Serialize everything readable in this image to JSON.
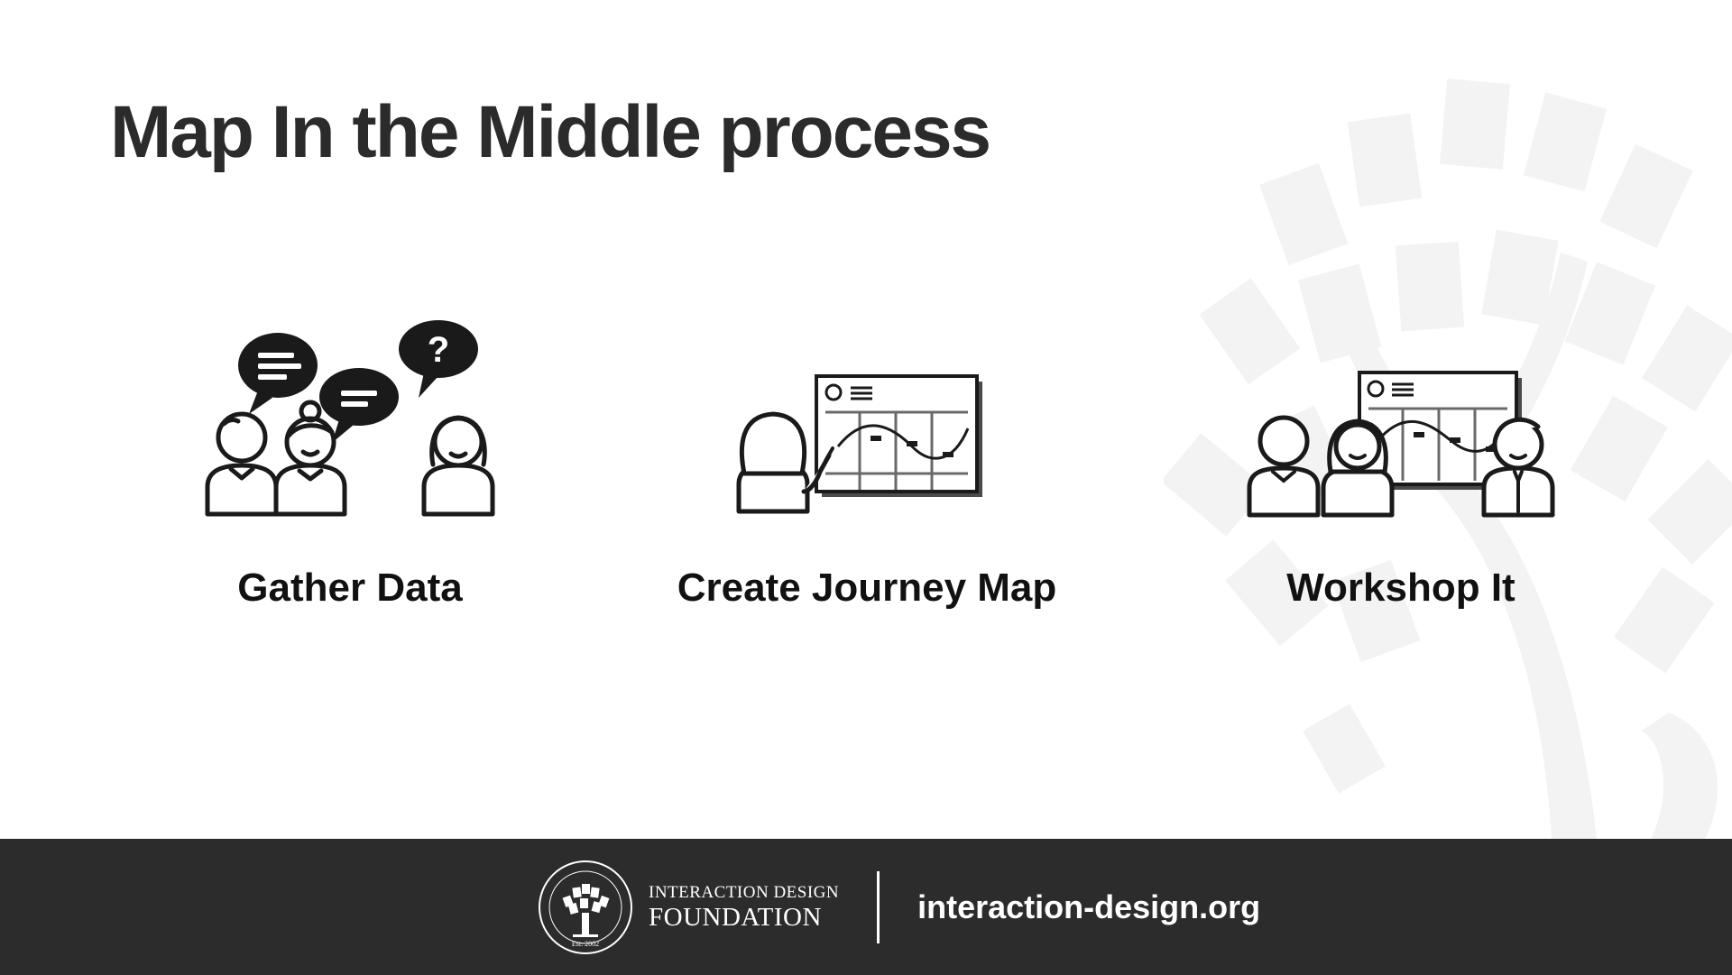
{
  "slide": {
    "title": "Map In the Middle process"
  },
  "steps": [
    {
      "label": "Gather Data",
      "icon": "people-talking-icon"
    },
    {
      "label": "Create Journey Map",
      "icon": "person-whiteboard-icon"
    },
    {
      "label": "Workshop It",
      "icon": "team-whiteboard-icon"
    }
  ],
  "footer": {
    "org_line1": "INTERACTION DESIGN",
    "org_line2": "FOUNDATION",
    "seal_text": "INTERACTION DESIGN FOUNDATION",
    "seal_est": "Est. 2002",
    "url": "interaction-design.org"
  },
  "colors": {
    "title": "#2b2b2b",
    "footer_bg": "#2c2c2c",
    "watermark": "#f3f3f3"
  }
}
